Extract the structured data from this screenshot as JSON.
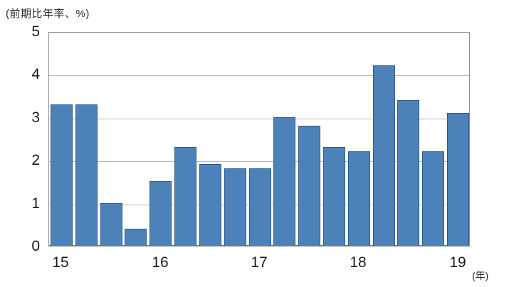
{
  "chart_data": {
    "type": "bar",
    "title": "(前期比年率、%)",
    "x_axis_unit": "(年)",
    "categories": [
      "2015Q1",
      "2015Q2",
      "2015Q3",
      "2015Q4",
      "2016Q1",
      "2016Q2",
      "2016Q3",
      "2016Q4",
      "2017Q1",
      "2017Q2",
      "2017Q3",
      "2017Q4",
      "2018Q1",
      "2018Q2",
      "2018Q3",
      "2018Q4",
      "2019Q1"
    ],
    "values": [
      3.3,
      3.3,
      1.0,
      0.4,
      1.5,
      2.3,
      1.9,
      1.8,
      1.8,
      3.0,
      2.8,
      2.3,
      2.2,
      4.2,
      3.4,
      2.2,
      3.1
    ],
    "ylim": [
      0,
      5
    ],
    "yticks": [
      0,
      1,
      2,
      3,
      4,
      5
    ],
    "x_tick_labels": [
      {
        "label": "15",
        "bar_index": 0
      },
      {
        "label": "16",
        "bar_index": 4
      },
      {
        "label": "17",
        "bar_index": 8
      },
      {
        "label": "18",
        "bar_index": 12
      },
      {
        "label": "19",
        "bar_index": 16
      }
    ],
    "grid": "horizontal",
    "legend": "none",
    "bar_fill": "#4d82b8",
    "bar_border": "#2e5a88"
  }
}
